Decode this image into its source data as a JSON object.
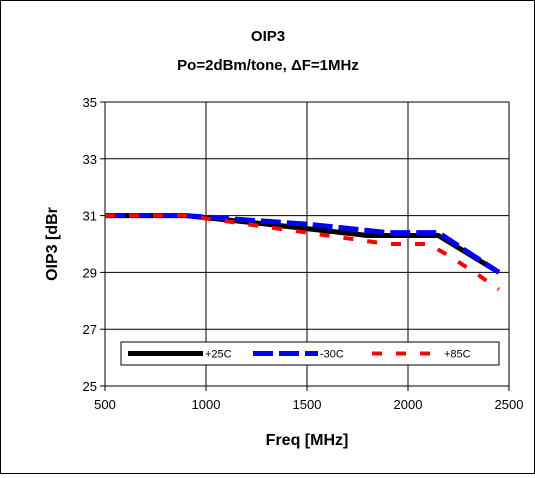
{
  "chart_data": {
    "type": "line",
    "title": "OIP3",
    "subtitle_prefix": "Po=2dBm/tone, ",
    "subtitle_delta": "Δ",
    "subtitle_suffix": "F=1MHz",
    "xlabel": "Freq [MHz]",
    "ylabel": "OIP3 [dBr",
    "xlim": [
      500,
      2500
    ],
    "ylim": [
      25,
      35
    ],
    "xticks": [
      500,
      1000,
      1500,
      2000,
      2500
    ],
    "yticks": [
      25,
      27,
      29,
      31,
      33,
      35
    ],
    "grid": true,
    "legend_position": "bottom-inside",
    "series": [
      {
        "name": "+25C",
        "color": "#000000",
        "style": "solid",
        "x": [
          500,
          900,
          1300,
          1800,
          2150,
          2450
        ],
        "y": [
          31.0,
          31.0,
          30.7,
          30.3,
          30.3,
          29.0
        ]
      },
      {
        "name": "-30C",
        "color": "#0000ff",
        "style": "dashed",
        "x": [
          500,
          900,
          1300,
          1500,
          1900,
          2000,
          2150,
          2450
        ],
        "y": [
          31.0,
          31.0,
          30.8,
          30.7,
          30.4,
          30.4,
          30.4,
          29.0
        ]
      },
      {
        "name": "+85C",
        "color": "#ff0000",
        "style": "dashed",
        "x": [
          500,
          900,
          1200,
          1500,
          1700,
          1900,
          2000,
          2100,
          2200,
          2350,
          2450
        ],
        "y": [
          31.0,
          31.0,
          30.7,
          30.4,
          30.2,
          30.0,
          30.0,
          30.0,
          29.6,
          28.9,
          28.4
        ]
      }
    ]
  }
}
